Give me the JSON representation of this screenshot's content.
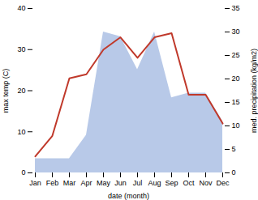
{
  "chart_data": {
    "type": "line",
    "categories": [
      "Jan",
      "Feb",
      "Mar",
      "Apr",
      "May",
      "Jun",
      "Jul",
      "Aug",
      "Sep",
      "Oct",
      "Nov",
      "Dec"
    ],
    "xlabel": "date (month)",
    "ylabel": "max temp (C)",
    "y2label": "med. precipitation (kg/m2)",
    "ylim": [
      0,
      40
    ],
    "yticks": [
      0,
      10,
      20,
      30,
      40
    ],
    "y2lim": [
      0,
      35
    ],
    "y2ticks": [
      0,
      5,
      10,
      15,
      20,
      25,
      30,
      35
    ],
    "grid": false,
    "series": [
      {
        "type": "area",
        "axis": "y2",
        "color": "#b8c9e8",
        "values": [
          3,
          3,
          3,
          8,
          30,
          29,
          22,
          30,
          16,
          17,
          17,
          11
        ]
      },
      {
        "type": "line",
        "color": "#c0392b",
        "values": [
          4,
          9,
          23,
          24,
          30,
          33,
          28,
          33,
          34,
          19,
          19,
          12
        ]
      }
    ]
  }
}
